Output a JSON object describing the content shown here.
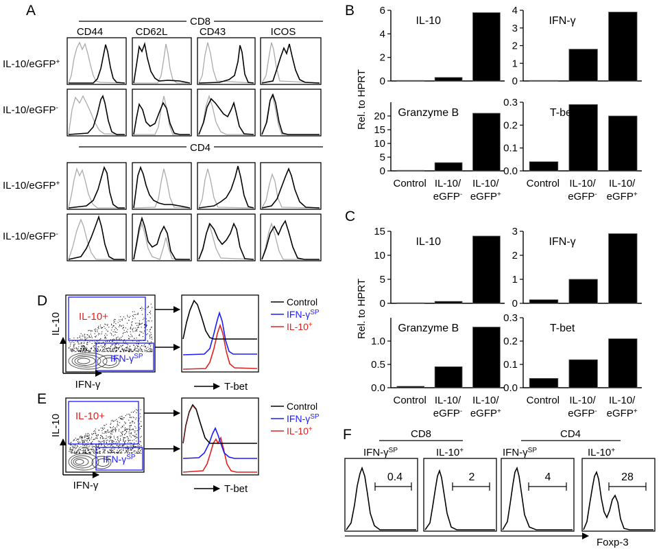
{
  "panels": {
    "A": "A",
    "B": "B",
    "C": "C",
    "D": "D",
    "E": "E",
    "F": "F"
  },
  "panel_a": {
    "cd8_label": "CD8",
    "cd4_label": "CD4",
    "markers": [
      "CD44",
      "CD62L",
      "CD43",
      "ICOS"
    ],
    "rows": [
      {
        "group": "CD8",
        "base": "IL-10/eGFP",
        "sup": "+"
      },
      {
        "group": "CD8",
        "base": "IL-10/eGFP",
        "sup": "-"
      },
      {
        "group": "CD4",
        "base": "IL-10/eGFP",
        "sup": "+"
      },
      {
        "group": "CD4",
        "base": "IL-10/eGFP",
        "sup": "-"
      }
    ]
  },
  "bar_axis_label": "Rel. to HPRT",
  "group_labels": [
    {
      "l1": "Control",
      "l2": "",
      "sup": ""
    },
    {
      "l1": "IL-10/",
      "l2": "eGFP",
      "sup": "-"
    },
    {
      "l1": "IL-10/",
      "l2": "eGFP",
      "sup": "+"
    }
  ],
  "chart_data": [
    {
      "panel": "B",
      "type": "bar",
      "title": "IL-10",
      "categories": [
        "Control",
        "IL-10/eGFP-",
        "IL-10/eGFP+"
      ],
      "values": [
        0.03,
        0.3,
        5.8
      ],
      "ylim": [
        0,
        6
      ],
      "yticks": [
        0,
        2,
        4,
        6
      ]
    },
    {
      "panel": "B",
      "type": "bar",
      "title": "IFN-γ",
      "categories": [
        "Control",
        "IL-10/eGFP-",
        "IL-10/eGFP+"
      ],
      "values": [
        0,
        1.8,
        3.9
      ],
      "ylim": [
        0,
        4
      ],
      "yticks": [
        0,
        1,
        2,
        3,
        4
      ]
    },
    {
      "panel": "B",
      "type": "bar",
      "title": "Granzyme B",
      "categories": [
        "Control",
        "IL-10/eGFP-",
        "IL-10/eGFP+"
      ],
      "values": [
        0,
        3,
        21
      ],
      "ylim": [
        0,
        25
      ],
      "yticks": [
        0,
        5,
        10,
        15,
        20
      ]
    },
    {
      "panel": "B",
      "type": "bar",
      "title": "T-bet",
      "categories": [
        "Control",
        "IL-10/eGFP-",
        "IL-10/eGFP+"
      ],
      "values": [
        0.04,
        0.29,
        0.24
      ],
      "ylim": [
        0,
        0.3
      ],
      "yticks": [
        0.0,
        0.1,
        0.2,
        0.3
      ]
    },
    {
      "panel": "C",
      "type": "bar",
      "title": "IL-10",
      "categories": [
        "Control",
        "IL-10/eGFP-",
        "IL-10/eGFP+"
      ],
      "values": [
        0.1,
        0.4,
        14
      ],
      "ylim": [
        0,
        15
      ],
      "yticks": [
        0,
        5,
        10,
        15
      ]
    },
    {
      "panel": "C",
      "type": "bar",
      "title": "IFN-γ",
      "categories": [
        "Control",
        "IL-10/eGFP-",
        "IL-10/eGFP+"
      ],
      "values": [
        0.15,
        1,
        2.9
      ],
      "ylim": [
        0,
        3
      ],
      "yticks": [
        0,
        1,
        2,
        3
      ]
    },
    {
      "panel": "C",
      "type": "bar",
      "title": "Granzyme B",
      "categories": [
        "Control",
        "IL-10/eGFP-",
        "IL-10/eGFP+"
      ],
      "values": [
        0.03,
        0.45,
        1.3
      ],
      "ylim": [
        0,
        1.5
      ],
      "yticks": [
        0.0,
        0.5,
        1.0
      ]
    },
    {
      "panel": "C",
      "type": "bar",
      "title": "T-bet",
      "categories": [
        "Control",
        "IL-10/eGFP-",
        "IL-10/eGFP+"
      ],
      "values": [
        0.04,
        0.12,
        0.21
      ],
      "ylim": [
        0,
        0.3
      ],
      "yticks": [
        0.0,
        0.1,
        0.2,
        0.3
      ]
    }
  ],
  "panel_de": {
    "y_axis": "IL-10",
    "x_axis": "IFN-γ",
    "gate_il10": "IL-10+",
    "gate_ifn_base": "IFN-γ",
    "gate_ifn_sup": "SP",
    "hist_axis": "T-bet",
    "legend": [
      {
        "base": "Control",
        "sup": "",
        "color": "#000000"
      },
      {
        "base": "IFN-γ",
        "sup": "SP",
        "color": "#1a1aff"
      },
      {
        "base": "IL-10",
        "sup": "+",
        "color": "#ff1a1a"
      }
    ]
  },
  "panel_f": {
    "cd8_label": "CD8",
    "cd4_label": "CD4",
    "x_axis": "Foxp-3",
    "hists": [
      {
        "base": "IFN-γ",
        "sup": "SP",
        "pct": "0.4"
      },
      {
        "base": "IL-10",
        "sup": "+",
        "pct": "2"
      },
      {
        "base": "IFN-γ",
        "sup": "SP",
        "pct": "4"
      },
      {
        "base": "IL-10",
        "sup": "+",
        "pct": "28"
      }
    ]
  }
}
